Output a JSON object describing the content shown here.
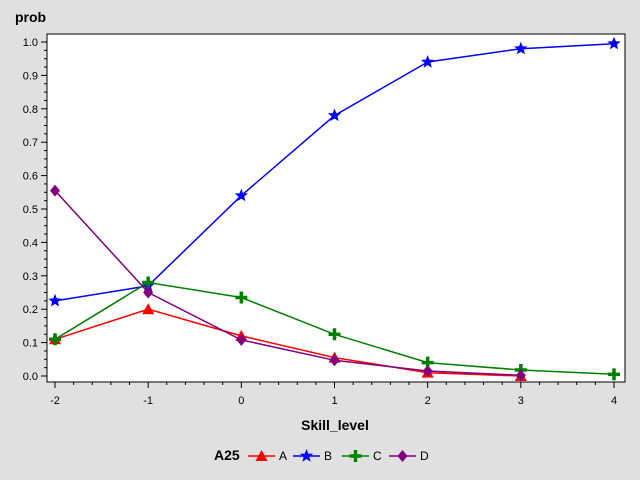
{
  "chart_data": {
    "type": "line",
    "ylabel": "prob",
    "xlabel": "Skill_level",
    "x": [
      -2,
      -1,
      0,
      1,
      2,
      3,
      4
    ],
    "xlim": [
      -2,
      4
    ],
    "ylim": [
      0,
      1.0
    ],
    "x_ticks": [
      "-2",
      "-1",
      "0",
      "1",
      "2",
      "3",
      "4"
    ],
    "y_ticks": [
      "0.0",
      "0.1",
      "0.2",
      "0.3",
      "0.4",
      "0.5",
      "0.6",
      "0.7",
      "0.8",
      "0.9",
      "1.0"
    ],
    "grid": false,
    "legend_placement": "bottom",
    "legend": {
      "title": "A25"
    },
    "series": [
      {
        "name": "A",
        "color": "#ff0000",
        "marker": "triangle-icon",
        "x": [
          -2,
          -1,
          0,
          1,
          2,
          3
        ],
        "values": [
          0.11,
          0.2,
          0.12,
          0.055,
          0.01,
          0.0
        ]
      },
      {
        "name": "B",
        "color": "#0000ff",
        "marker": "star-icon",
        "x": [
          -2,
          -1,
          0,
          1,
          2,
          3,
          4
        ],
        "values": [
          0.225,
          0.27,
          0.54,
          0.78,
          0.94,
          0.98,
          0.995
        ]
      },
      {
        "name": "C",
        "color": "#008000",
        "marker": "plus-icon",
        "x": [
          -2,
          -1,
          0,
          1,
          2,
          3,
          4
        ],
        "values": [
          0.11,
          0.28,
          0.235,
          0.125,
          0.04,
          0.018,
          0.005
        ]
      },
      {
        "name": "D",
        "color": "#800080",
        "marker": "diamond-icon",
        "x": [
          -2,
          -1,
          0,
          1,
          2,
          3
        ],
        "values": [
          0.555,
          0.25,
          0.108,
          0.047,
          0.015,
          0.002
        ]
      }
    ]
  }
}
